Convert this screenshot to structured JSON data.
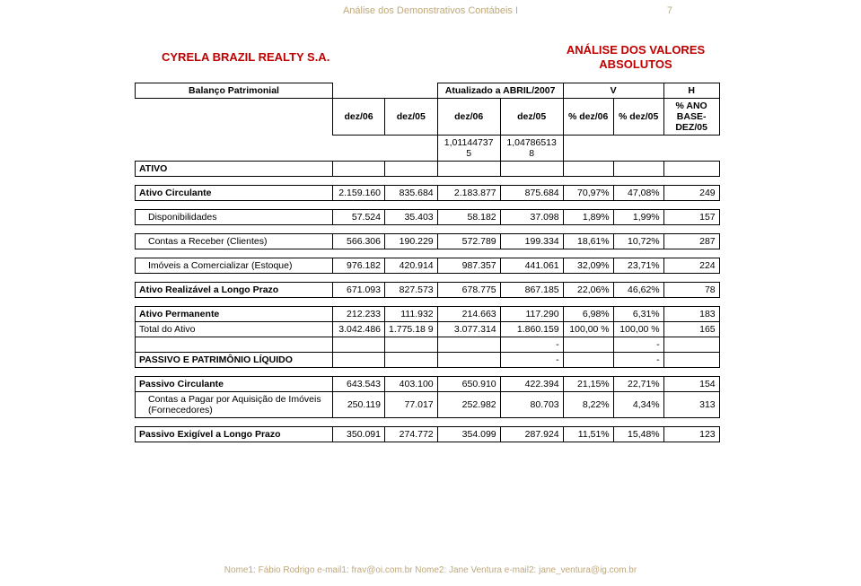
{
  "header": {
    "docTitle": "Análise dos Demonstrativos Contábeis I",
    "pageNumber": "7"
  },
  "company": "CYRELA BRAZIL REALTY S.A.",
  "analysisTitle": "ANÁLISE DOS VALORES ABSOLUTOS",
  "tableHeader": {
    "balanco": "Balanço Patrimonial",
    "atualizado": "Atualizado a ABRIL/2007",
    "V": "V",
    "H": "H",
    "dez06": "dez/06",
    "dez05": "dez/05",
    "pctDez06": "% dez/06",
    "pctDez05": "% dez/05",
    "hLabel": "% ANO BASE-DEZ/05",
    "factor06": "1,01144737 5",
    "factor05": "1,04786513 8"
  },
  "rows": [
    {
      "label": "ATIVO",
      "bold": true,
      "indent": 0,
      "d06a": "",
      "d05a": "",
      "d06b": "",
      "d05b": "",
      "vd06": "",
      "vd05": "",
      "h": ""
    },
    {
      "spacer": true
    },
    {
      "label": "Ativo Circulante",
      "bold": true,
      "indent": 0,
      "d06a": "2.159.160",
      "d05a": "835.684",
      "d06b": "2.183.877",
      "d05b": "875.684",
      "vd06": "70,97%",
      "vd05": "47,08%",
      "h": "249"
    },
    {
      "spacer": true
    },
    {
      "label": "Disponibilidades",
      "bold": false,
      "indent": 1,
      "d06a": "57.524",
      "d05a": "35.403",
      "d06b": "58.182",
      "d05b": "37.098",
      "vd06": "1,89%",
      "vd05": "1,99%",
      "h": "157"
    },
    {
      "spacer": true
    },
    {
      "label": "Contas a Receber (Clientes)",
      "bold": false,
      "indent": 1,
      "d06a": "566.306",
      "d05a": "190.229",
      "d06b": "572.789",
      "d05b": "199.334",
      "vd06": "18,61%",
      "vd05": "10,72%",
      "h": "287"
    },
    {
      "spacer": true
    },
    {
      "label": "Imóveis a Comercializar (Estoque)",
      "bold": false,
      "indent": 1,
      "d06a": "976.182",
      "d05a": "420.914",
      "d06b": "987.357",
      "d05b": "441.061",
      "vd06": "32,09%",
      "vd05": "23,71%",
      "h": "224"
    },
    {
      "spacer": true
    },
    {
      "label": "Ativo Realizável a Longo Prazo",
      "bold": true,
      "indent": 0,
      "d06a": "671.093",
      "d05a": "827.573",
      "d06b": "678.775",
      "d05b": "867.185",
      "vd06": "22,06%",
      "vd05": "46,62%",
      "h": "78"
    },
    {
      "spacer": true
    },
    {
      "label": "Ativo Permanente",
      "bold": true,
      "indent": 0,
      "d06a": "212.233",
      "d05a": "111.932",
      "d06b": "214.663",
      "d05b": "117.290",
      "vd06": "6,98%",
      "vd05": "6,31%",
      "h": "183"
    },
    {
      "label": "Total do Ativo",
      "bold": false,
      "indent": 0,
      "d06a": "3.042.486",
      "d05a": "1.775.18 9",
      "d06b": "3.077.314",
      "d05b": "1.860.159",
      "vd06": "100,00 %",
      "vd05": "100,00 %",
      "h": "165"
    },
    {
      "label": "",
      "bold": false,
      "indent": 0,
      "d06a": "",
      "d05a": "",
      "d06b": "",
      "d05b": "-",
      "vd06": "",
      "vd05": "-",
      "h": ""
    },
    {
      "label": "PASSIVO E PATRIMÔNIO LÍQUIDO",
      "bold": true,
      "indent": 0,
      "d06a": "",
      "d05a": "",
      "d06b": "",
      "d05b": "-",
      "vd06": "",
      "vd05": "-",
      "h": ""
    },
    {
      "spacer": true
    },
    {
      "label": "Passivo Circulante",
      "bold": true,
      "indent": 0,
      "d06a": "643.543",
      "d05a": "403.100",
      "d06b": "650.910",
      "d05b": "422.394",
      "vd06": "21,15%",
      "vd05": "22,71%",
      "h": "154"
    },
    {
      "label": "Contas a Pagar por Aquisição de Imóveis (Fornecedores)",
      "bold": false,
      "indent": 1,
      "d06a": "250.119",
      "d05a": "77.017",
      "d06b": "252.982",
      "d05b": "80.703",
      "vd06": "8,22%",
      "vd05": "4,34%",
      "h": "313",
      "wrap": true
    },
    {
      "spacer": true
    },
    {
      "label": "Passivo Exigível a Longo Prazo",
      "bold": true,
      "indent": 0,
      "d06a": "350.091",
      "d05a": "274.772",
      "d06b": "354.099",
      "d05b": "287.924",
      "vd06": "11,51%",
      "vd05": "15,48%",
      "h": "123"
    }
  ],
  "footer": "Nome1: Fábio Rodrigo  e-mail1: frav@oi.com.br   Nome2: Jane Ventura  e-mail2: jane_ventura@ig.com.br",
  "style": {
    "colors": {
      "headerText": "#bfa87a",
      "accent": "#c00000",
      "border": "#000000",
      "background": "#ffffff"
    },
    "fontSizes": {
      "header": 11,
      "title": 13,
      "table": 10.5,
      "footer": 10
    }
  }
}
